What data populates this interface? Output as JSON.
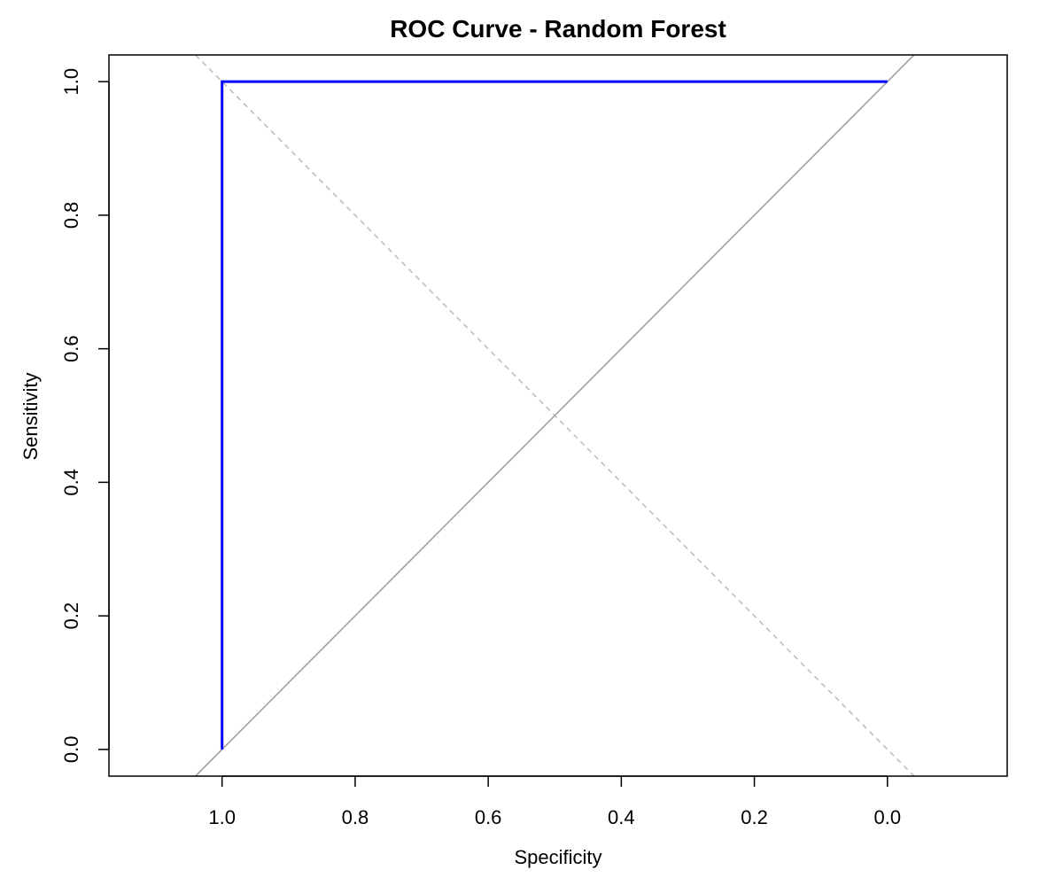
{
  "chart_data": {
    "type": "line",
    "title": "ROC Curve - Random Forest",
    "xlabel": "Specificity",
    "ylabel": "Sensitivity",
    "x_reversed": true,
    "xlim": [
      1.17,
      -0.18
    ],
    "ylim": [
      -0.04,
      1.04
    ],
    "xticks": [
      1.0,
      0.8,
      0.6,
      0.4,
      0.2,
      0.0
    ],
    "xtick_labels": [
      "1.0",
      "0.8",
      "0.6",
      "0.4",
      "0.2",
      "0.0"
    ],
    "yticks": [
      0.0,
      0.2,
      0.4,
      0.6,
      0.8,
      1.0
    ],
    "ytick_labels": [
      "0.0",
      "0.2",
      "0.4",
      "0.6",
      "0.8",
      "1.0"
    ],
    "grid": false,
    "series": [
      {
        "role": "roc-curve",
        "color": "#0000ff",
        "style": "solid",
        "x": [
          1.0,
          1.0,
          0.0
        ],
        "y": [
          0.0,
          1.0,
          1.0
        ]
      },
      {
        "role": "chance-diagonal",
        "color": "#a0a0a0",
        "style": "solid",
        "x": [
          1.04,
          -0.04
        ],
        "y": [
          -0.04,
          1.04
        ]
      },
      {
        "role": "reference-diagonal",
        "color": "#bebebe",
        "style": "dashed",
        "x": [
          1.04,
          -0.04
        ],
        "y": [
          1.04,
          -0.04
        ]
      }
    ]
  }
}
